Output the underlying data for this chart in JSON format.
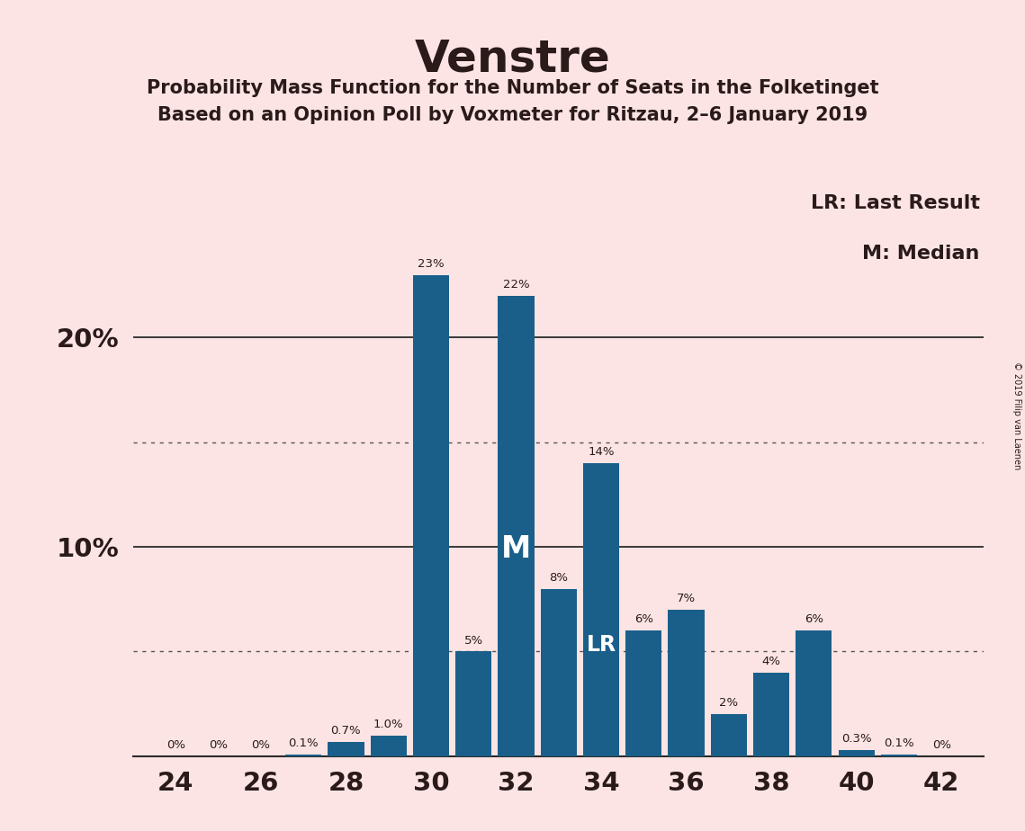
{
  "title": "Venstre",
  "subtitle1": "Probability Mass Function for the Number of Seats in the Folketinget",
  "subtitle2": "Based on an Opinion Poll by Voxmeter for Ritzau, 2–6 January 2019",
  "copyright": "© 2019 Filip van Laenen",
  "seats": [
    24,
    25,
    26,
    27,
    28,
    29,
    30,
    31,
    32,
    33,
    34,
    35,
    36,
    37,
    38,
    39,
    40,
    41,
    42
  ],
  "probabilities": [
    0.0,
    0.0,
    0.0,
    0.1,
    0.7,
    1.0,
    23.0,
    5.0,
    22.0,
    8.0,
    14.0,
    6.0,
    7.0,
    2.0,
    4.0,
    6.0,
    0.3,
    0.1,
    0.0
  ],
  "bar_labels": [
    "0%",
    "0%",
    "0%",
    "0.1%",
    "0.7%",
    "1.0%",
    "23%",
    "5%",
    "22%",
    "8%",
    "14%",
    "6%",
    "7%",
    "2%",
    "4%",
    "6%",
    "0.3%",
    "0.1%",
    "0%"
  ],
  "bar_color": "#1a5f8a",
  "background_color": "#fce4e4",
  "grid_color": "#2a2a2a",
  "dotted_grid_color": "#555555",
  "text_color": "#2a1a1a",
  "white_text_color": "#ffffff",
  "median_seat": 32,
  "last_result_seat": 34,
  "legend_lr": "LR: Last Result",
  "legend_m": "M: Median",
  "solid_gridlines": [
    10,
    20
  ],
  "dotted_gridlines": [
    5,
    15
  ],
  "ylim": [
    0,
    27
  ],
  "xlim": [
    23.0,
    43.0
  ],
  "figsize": [
    11.39,
    9.24
  ],
  "dpi": 100
}
